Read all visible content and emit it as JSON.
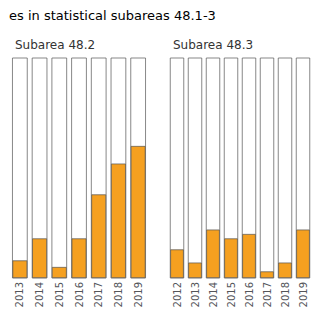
{
  "chart_data": [
    {
      "type": "bar",
      "title": "es in statistical subareas 48.1-3",
      "subtitle": "Subarea 48.2",
      "categories": [
        "2013",
        "2014",
        "2015",
        "2016",
        "2017",
        "2018",
        "2019"
      ],
      "values": [
        0.08,
        0.18,
        0.05,
        0.18,
        0.38,
        0.52,
        0.6
      ],
      "color": "#F5A020",
      "ylim": [
        0,
        1.0
      ],
      "grid": false,
      "tick_labels": "x"
    },
    {
      "type": "bar",
      "subtitle": "Subarea 48.3",
      "categories": [
        "2012",
        "2013",
        "2014",
        "2015",
        "2016",
        "2017",
        "2018",
        "2019"
      ],
      "values": [
        0.13,
        0.07,
        0.22,
        0.18,
        0.2,
        0.03,
        0.07,
        0.22
      ],
      "color": "#F5A020",
      "ylim": [
        0,
        1.0
      ],
      "grid": false,
      "tick_labels": "x"
    }
  ]
}
